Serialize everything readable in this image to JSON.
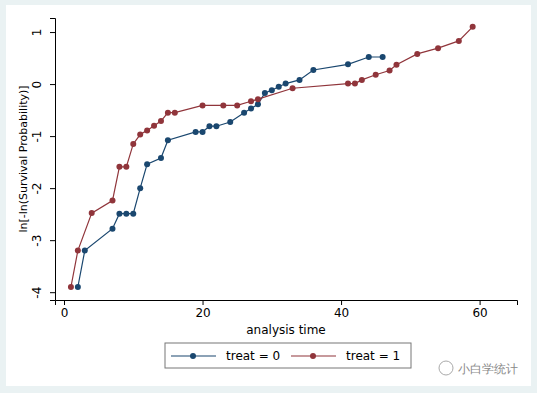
{
  "chart_data": {
    "type": "line",
    "x_label": "analysis time",
    "y_label": "ln[-ln(Survival Probability)]",
    "xlim": [
      -1.3,
      65.4
    ],
    "xticks": [
      0,
      20,
      40,
      60
    ],
    "ylim": [
      -4.15,
      1.27
    ],
    "yticks": [
      -4,
      -3,
      -2,
      -1,
      0,
      1
    ],
    "grid": false,
    "legend": "bottom",
    "marker": "circle",
    "annotations": [
      "小白学统计"
    ],
    "series": [
      {
        "name": "treat = 0",
        "color": "#1a476f",
        "x": [
          2,
          3,
          7,
          8,
          9,
          10,
          11,
          12,
          14,
          15,
          19,
          20,
          21,
          22,
          24,
          26,
          27,
          28,
          29,
          30,
          31,
          32,
          34,
          36,
          41,
          44,
          46
        ],
        "values": [
          -3.9,
          -3.2,
          -2.78,
          -2.49,
          -2.49,
          -2.49,
          -2.0,
          -1.54,
          -1.42,
          -1.08,
          -0.92,
          -0.92,
          -0.81,
          -0.81,
          -0.73,
          -0.55,
          -0.47,
          -0.39,
          -0.17,
          -0.12,
          -0.05,
          0.01,
          0.08,
          0.27,
          0.38,
          0.52,
          0.52
        ]
      },
      {
        "name": "treat = 1",
        "color": "#90353b",
        "x": [
          1,
          2,
          4,
          7,
          8,
          9,
          10,
          11,
          12,
          13,
          14,
          15,
          16,
          20,
          23,
          25,
          27,
          28,
          33,
          41,
          42,
          43,
          45,
          47,
          48,
          51,
          54,
          57,
          59
        ],
        "values": [
          -3.9,
          -3.2,
          -2.48,
          -2.24,
          -1.59,
          -1.59,
          -1.15,
          -0.97,
          -0.89,
          -0.8,
          -0.71,
          -0.55,
          -0.55,
          -0.41,
          -0.41,
          -0.41,
          -0.33,
          -0.29,
          -0.08,
          0.01,
          0.01,
          0.08,
          0.18,
          0.26,
          0.37,
          0.58,
          0.69,
          0.83,
          1.1
        ]
      }
    ]
  }
}
